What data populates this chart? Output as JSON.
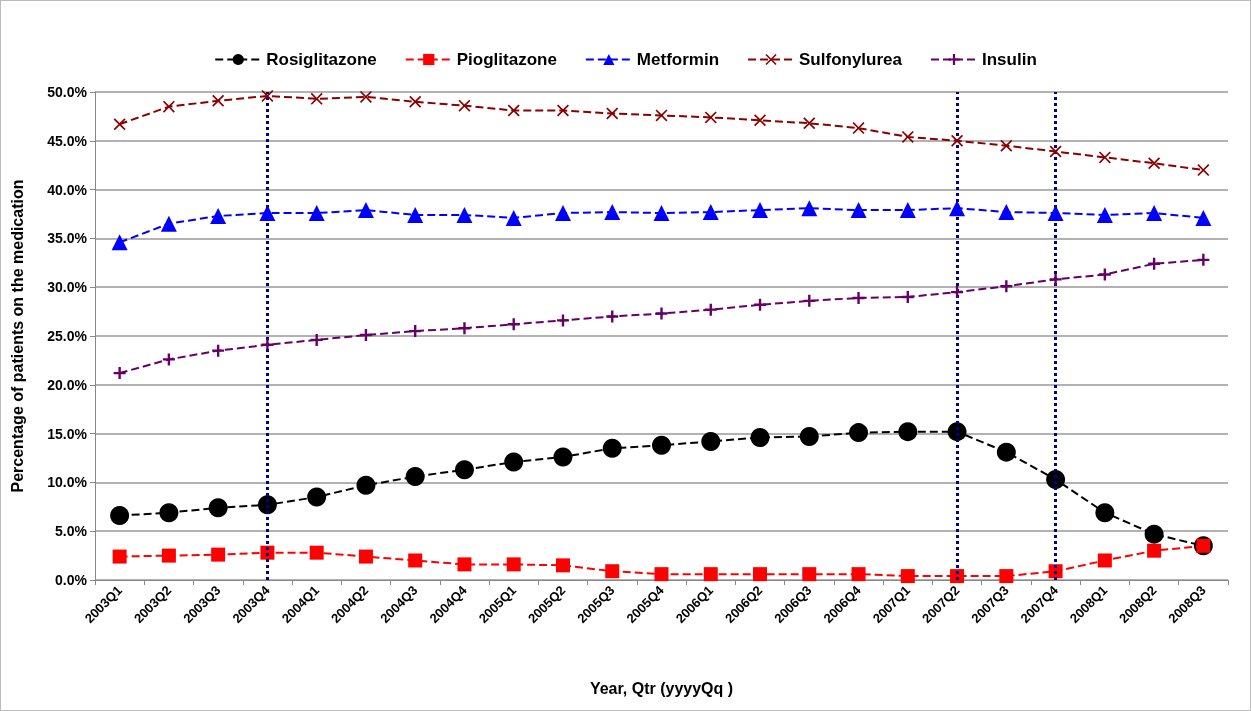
{
  "chart_data": {
    "type": "line",
    "xlabel": "Year, Qtr (yyyyQq )",
    "ylabel": "Percentage of patients on the medication",
    "categories": [
      "2003Q1",
      "2003Q2",
      "2003Q3",
      "2003Q4",
      "2004Q1",
      "2004Q2",
      "2004Q3",
      "2004Q4",
      "2005Q1",
      "2005Q2",
      "2005Q3",
      "2005Q4",
      "2006Q1",
      "2006Q2",
      "2006Q3",
      "2006Q4",
      "2007Q1",
      "2007Q2",
      "2007Q3",
      "2007Q4",
      "2008Q1",
      "2008Q2",
      "2008Q3"
    ],
    "series": [
      {
        "name": "Rosiglitazone",
        "color": "#000000",
        "marker": "circle",
        "values": [
          6.6,
          6.9,
          7.4,
          7.7,
          8.5,
          9.7,
          10.6,
          11.3,
          12.1,
          12.6,
          13.5,
          13.8,
          14.2,
          14.6,
          14.7,
          15.1,
          15.2,
          15.2,
          13.1,
          10.3,
          6.9,
          4.7,
          3.5
        ]
      },
      {
        "name": "Pioglitazone",
        "color": "#ff0000",
        "marker": "square",
        "values": [
          2.4,
          2.5,
          2.6,
          2.8,
          2.8,
          2.4,
          2.0,
          1.6,
          1.6,
          1.5,
          0.9,
          0.6,
          0.6,
          0.6,
          0.6,
          0.6,
          0.4,
          0.4,
          0.4,
          0.9,
          2.0,
          3.0,
          3.5
        ]
      },
      {
        "name": "Metformin",
        "color": "#0000ff",
        "marker": "triangle",
        "values": [
          34.6,
          36.5,
          37.3,
          37.6,
          37.6,
          37.9,
          37.4,
          37.4,
          37.1,
          37.6,
          37.7,
          37.6,
          37.7,
          37.9,
          38.1,
          37.9,
          37.9,
          38.1,
          37.7,
          37.6,
          37.4,
          37.6,
          37.1
        ]
      },
      {
        "name": "Sulfonylurea",
        "color": "#8b0000",
        "marker": "cross",
        "values": [
          46.7,
          48.5,
          49.1,
          49.6,
          49.3,
          49.5,
          49.0,
          48.6,
          48.1,
          48.1,
          47.8,
          47.6,
          47.4,
          47.1,
          46.8,
          46.3,
          45.4,
          45.0,
          44.5,
          43.9,
          43.3,
          42.7,
          42.0
        ]
      },
      {
        "name": "Insulin",
        "color": "#660066",
        "marker": "plus",
        "values": [
          21.2,
          22.6,
          23.5,
          24.1,
          24.6,
          25.1,
          25.5,
          25.8,
          26.2,
          26.6,
          27.0,
          27.3,
          27.7,
          28.2,
          28.6,
          28.9,
          29.0,
          29.5,
          30.1,
          30.8,
          31.3,
          32.4,
          32.8
        ]
      }
    ],
    "ylim": [
      0,
      50
    ],
    "yticks": [
      {
        "value": 0,
        "label": "0.0%"
      },
      {
        "value": 5,
        "label": "5.0%"
      },
      {
        "value": 10,
        "label": "10.0%"
      },
      {
        "value": 15,
        "label": "15.0%"
      },
      {
        "value": 20,
        "label": "20.0%"
      },
      {
        "value": 25,
        "label": "25.0%"
      },
      {
        "value": 30,
        "label": "30.0%"
      },
      {
        "value": 35,
        "label": "35.0%"
      },
      {
        "value": 40,
        "label": "40.0%"
      },
      {
        "value": 45,
        "label": "45.0%"
      },
      {
        "value": 50,
        "label": "50.0%"
      }
    ],
    "ref_lines": [
      {
        "axis": "x",
        "value": "2003Q4",
        "color": "#00008b",
        "line_style": "dotted"
      },
      {
        "axis": "x",
        "value": "2007Q2",
        "color": "#00008b",
        "line_style": "dotted"
      },
      {
        "axis": "x",
        "value": "2007Q4",
        "color": "#00008b",
        "line_style": "dotted"
      }
    ],
    "grid": "y",
    "legend": "top",
    "line_style": "dashed"
  }
}
